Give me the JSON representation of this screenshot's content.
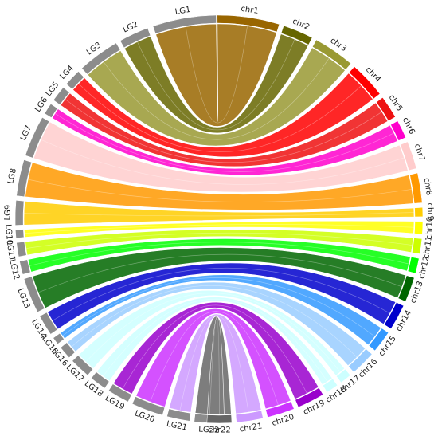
{
  "lg_color": "#8c8c8c",
  "lg_labels": [
    "LG1",
    "LG2",
    "LG3",
    "LG4",
    "LG5",
    "LG6",
    "LG7",
    "LG8",
    "LG9",
    "LG10",
    "LG11",
    "LG12",
    "LG13",
    "LG14",
    "LG15",
    "LG16",
    "LG17",
    "LG18",
    "LG19",
    "LG20",
    "LG21",
    "LG22"
  ],
  "chr_labels": [
    "chr1",
    "chr2",
    "chr3",
    "chr4",
    "chr5",
    "chr6",
    "chr7",
    "chr8",
    "chr9",
    "chr10",
    "chr11",
    "chr12",
    "chr13",
    "chr14",
    "chr15",
    "chr16",
    "chr17",
    "chr18",
    "chr19",
    "chr20",
    "chr21",
    "chr22"
  ],
  "chr_colors": [
    "#996600",
    "#666600",
    "#999933",
    "#ff0000",
    "#ee1111",
    "#ff00cc",
    "#ffcccc",
    "#ff9900",
    "#ffcc00",
    "#ffff00",
    "#ccff00",
    "#00ff00",
    "#006600",
    "#0000cc",
    "#3399ff",
    "#99ccff",
    "#ccffff",
    "#ccffff",
    "#9900cc",
    "#cc33ff",
    "#cc99ff",
    "#666666"
  ],
  "lg_to_chr": [
    0,
    1,
    2,
    3,
    4,
    5,
    6,
    7,
    8,
    9,
    10,
    11,
    12,
    13,
    14,
    15,
    16,
    17,
    18,
    19,
    20,
    21
  ]
}
